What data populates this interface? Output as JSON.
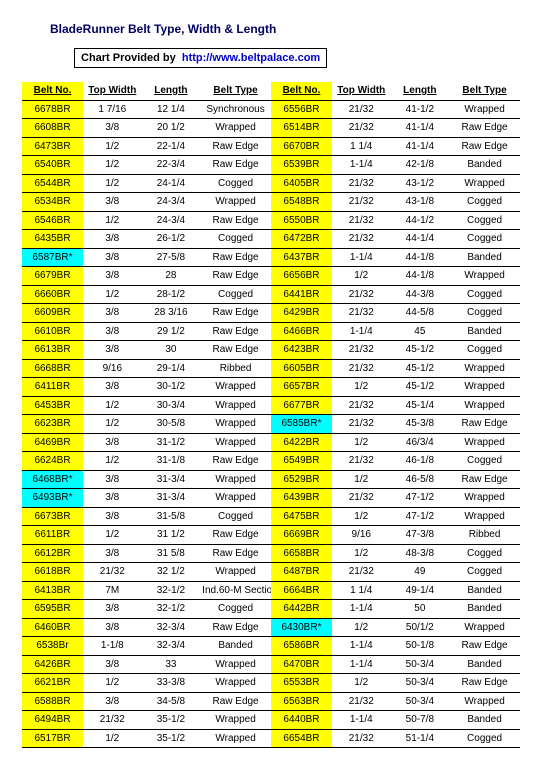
{
  "title": "BladeRunner Belt Type, Width & Length",
  "providedBy": {
    "label": "Chart Provided by",
    "url": "http://www.beltpalace.com"
  },
  "headers": [
    "Belt No.",
    "Top Width",
    "Length",
    "Belt Type",
    "Belt No.",
    "Top Width",
    "Length",
    "Belt Type"
  ],
  "highlight_color": "#00ffff",
  "yellow": "#ffff00",
  "rows": [
    [
      "6678BR",
      "1  7/16",
      "12 1/4",
      "Synchronous",
      "6556BR",
      "21/32",
      "41-1/2",
      "Wrapped"
    ],
    [
      "6608BR",
      "3/8",
      "20 1/2",
      "Wrapped",
      "6514BR",
      "21/32",
      "41-1/4",
      "Raw Edge"
    ],
    [
      "6473BR",
      "1/2",
      "22-1/4",
      "Raw Edge",
      "6670BR",
      "1  1/4",
      "41-1/4",
      "Raw Edge"
    ],
    [
      "6540BR",
      "1/2",
      "22-3/4",
      "Raw Edge",
      "6539BR",
      "1-1/4",
      "42-1/8",
      "Banded"
    ],
    [
      "6544BR",
      "1/2",
      "24-1/4",
      "Cogged",
      "6405BR",
      "21/32",
      "43-1/2",
      "Wrapped"
    ],
    [
      "6534BR",
      "3/8",
      "24-3/4",
      "Wrapped",
      "6548BR",
      "21/32",
      "43-1/8",
      "Cogged"
    ],
    [
      "6546BR",
      "1/2",
      "24-3/4",
      "Raw Edge",
      "6550BR",
      "21/32",
      "44-1/2",
      "Cogged"
    ],
    [
      "6435BR",
      "3/8",
      "26-1/2",
      "Cogged",
      "6472BR",
      "21/32",
      "44-1/4",
      "Cogged"
    ],
    [
      {
        "t": "6587BR*",
        "hl": true
      },
      "3/8",
      "27-5/8",
      "Raw Edge",
      "6437BR",
      "1-1/4",
      "44-1/8",
      "Banded"
    ],
    [
      "6679BR",
      "3/8",
      "28",
      "Raw Edge",
      "6656BR",
      "1/2",
      "44-1/8",
      "Wrapped"
    ],
    [
      "6660BR",
      "1/2",
      "28-1/2",
      "Cogged",
      "6441BR",
      "21/32",
      "44-3/8",
      "Cogged"
    ],
    [
      "6609BR",
      "3/8",
      "28  3/16",
      "Raw Edge",
      "6429BR",
      "21/32",
      "44-5/8",
      "Cogged"
    ],
    [
      "6610BR",
      "3/8",
      "29 1/2",
      "Raw Edge",
      "6466BR",
      "1-1/4",
      "45",
      "Banded"
    ],
    [
      "6613BR",
      "3/8",
      "30",
      "Raw Edge",
      "6423BR",
      "21/32",
      "45-1/2",
      "Cogged"
    ],
    [
      "6668BR",
      "9/16",
      "29-1/4",
      "Ribbed",
      "6605BR",
      "21/32",
      "45-1/2",
      "Wrapped"
    ],
    [
      "6411BR",
      "3/8",
      "30-1/2",
      "Wrapped",
      "6657BR",
      "1/2",
      "45-1/2",
      "Wrapped"
    ],
    [
      "6453BR",
      "1/2",
      "30-3/4",
      "Wrapped",
      "6677BR",
      "21/32",
      "45-1/4",
      "Wrapped"
    ],
    [
      "6623BR",
      "1/2",
      "30-5/8",
      "Wrapped",
      {
        "t": "6585BR*",
        "hl": true
      },
      "21/32",
      "45-3/8",
      "Raw Edge"
    ],
    [
      "6469BR",
      "3/8",
      "31-1/2",
      "Wrapped",
      "6422BR",
      "1/2",
      "46/3/4",
      "Wrapped"
    ],
    [
      "6624BR",
      "1/2",
      "31-1/8",
      "Raw Edge",
      "6549BR",
      "21/32",
      "46-1/8",
      "Cogged"
    ],
    [
      {
        "t": "6468BR*",
        "hl": true
      },
      "3/8",
      "31-3/4",
      "Wrapped",
      "6529BR",
      "1/2",
      "46-5/8",
      "Raw Edge"
    ],
    [
      {
        "t": "6493BR*",
        "hl": true
      },
      "3/8",
      "31-3/4",
      "Wrapped",
      "6439BR",
      "21/32",
      "47-1/2",
      "Wrapped"
    ],
    [
      "6673BR",
      "3/8",
      "31-5/8",
      "Cogged",
      "6475BR",
      "1/2",
      "47-1/2",
      "Wrapped"
    ],
    [
      "6611BR",
      "1/2",
      "31 1/2",
      "Raw Edge",
      "6669BR",
      "9/16",
      "47-3/8",
      "Ribbed"
    ],
    [
      "6612BR",
      "3/8",
      "31 5/8",
      "Raw Edge",
      "6658BR",
      "1/2",
      "48-3/8",
      "Cogged"
    ],
    [
      "6618BR",
      "21/32",
      "32 1/2",
      "Wrapped",
      "6487BR",
      "21/32",
      "49",
      "Cogged"
    ],
    [
      "6413BR",
      "7M",
      "32-1/2",
      "Ind.60-M Section",
      "6664BR",
      "1 1/4",
      "49-1/4",
      "Banded"
    ],
    [
      "6595BR",
      "3/8",
      "32-1/2",
      "Cogged",
      "6442BR",
      "1-1/4",
      "50",
      "Banded"
    ],
    [
      "6460BR",
      "3/8",
      "32-3/4",
      "Raw Edge",
      {
        "t": "6430BR*",
        "hl": true
      },
      "1/2",
      "50/1/2",
      "Wrapped"
    ],
    [
      "6538Br",
      "1-1/8",
      "32-3/4",
      "Banded",
      "6586BR",
      "1-1/4",
      "50-1/8",
      "Raw Edge"
    ],
    [
      "6426BR",
      "3/8",
      "33",
      "Wrapped",
      "6470BR",
      "1-1/4",
      "50-3/4",
      "Banded"
    ],
    [
      "6621BR",
      "1/2",
      "33-3/8",
      "Wrapped",
      "6553BR",
      "1/2",
      "50-3/4",
      "Raw Edge"
    ],
    [
      "6588BR",
      "3/8",
      "34-5/8",
      "Raw Edge",
      "6563BR",
      "21/32",
      "50-3/4",
      "Wrapped"
    ],
    [
      "6494BR",
      "21/32",
      "35-1/2",
      "Wrapped",
      "6440BR",
      "1-1/4",
      "50-7/8",
      "Banded"
    ],
    [
      "6517BR",
      "1/2",
      "35-1/2",
      "Wrapped",
      "6654BR",
      "21/32",
      "51-1/4",
      "Cogged"
    ]
  ]
}
